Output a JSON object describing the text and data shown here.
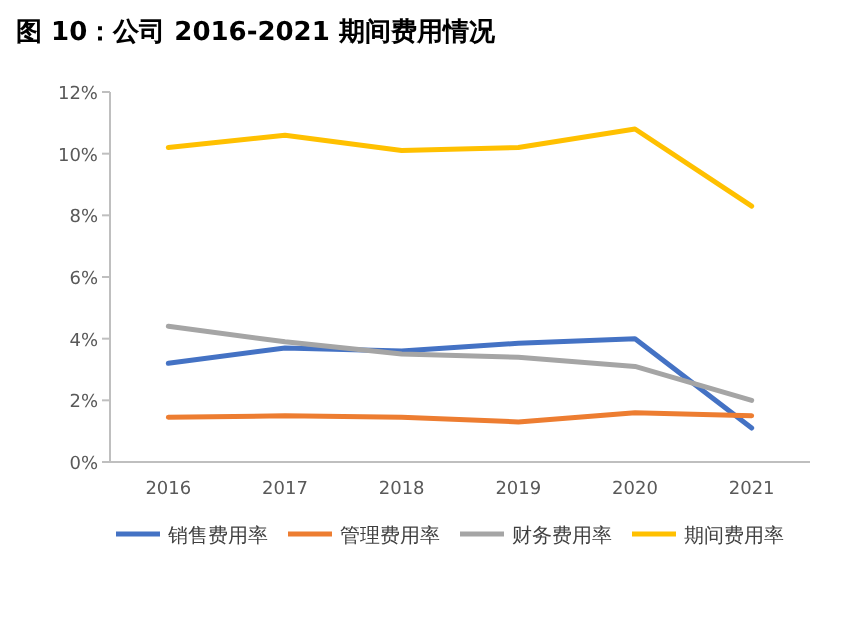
{
  "chart_data": {
    "type": "line",
    "title": "图 10：公司 2016-2021 期间费用情况",
    "categories": [
      "2016",
      "2017",
      "2018",
      "2019",
      "2020",
      "2021"
    ],
    "series": [
      {
        "name": "销售费用率",
        "color": "#4472c4",
        "values": [
          3.2,
          3.7,
          3.6,
          3.85,
          4.0,
          1.1
        ]
      },
      {
        "name": "管理费用率",
        "color": "#ed7d31",
        "values": [
          1.45,
          1.5,
          1.45,
          1.3,
          1.6,
          1.5
        ]
      },
      {
        "name": "财务费用率",
        "color": "#a5a5a5",
        "values": [
          4.4,
          3.9,
          3.5,
          3.4,
          3.1,
          2.0
        ]
      },
      {
        "name": "期间费用率",
        "color": "#ffc000",
        "values": [
          10.2,
          10.6,
          10.1,
          10.2,
          10.8,
          8.3
        ]
      }
    ],
    "ylim": [
      0,
      12
    ],
    "yticks": [
      {
        "value": 0,
        "label": "0%"
      },
      {
        "value": 2,
        "label": "2%"
      },
      {
        "value": 4,
        "label": "4%"
      },
      {
        "value": 6,
        "label": "6%"
      },
      {
        "value": 8,
        "label": "8%"
      },
      {
        "value": 10,
        "label": "10%"
      },
      {
        "value": 12,
        "label": "12%"
      }
    ],
    "legend": "bottom",
    "marker": "none",
    "line_style": "solid"
  }
}
